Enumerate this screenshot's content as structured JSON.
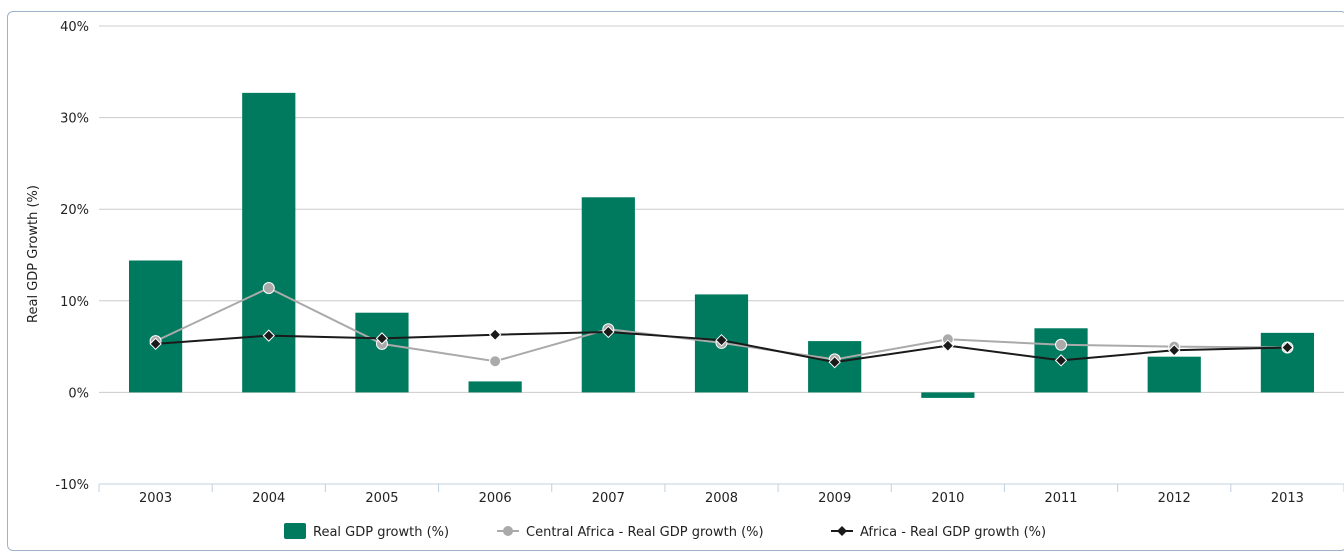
{
  "chart_data": {
    "type": "bar",
    "title": "",
    "xlabel": "",
    "ylabel": "Real GDP Growth (%)",
    "ylim": [
      -10,
      40
    ],
    "yticks": [
      -10,
      0,
      10,
      20,
      30,
      40
    ],
    "ytick_labels": [
      "-10%",
      "0%",
      "10%",
      "20%",
      "30%",
      "40%"
    ],
    "grid": true,
    "legend_position": "bottom-center",
    "categories": [
      "2003",
      "2004",
      "2005",
      "2006",
      "2007",
      "2008",
      "2009",
      "2010",
      "2011",
      "2012",
      "2013"
    ],
    "series": [
      {
        "name": "Real GDP growth (%)",
        "kind": "bar",
        "color": "#007a5e",
        "values": [
          14.4,
          32.7,
          8.7,
          1.2,
          21.3,
          10.7,
          5.6,
          -0.6,
          7.0,
          3.9,
          6.5
        ]
      },
      {
        "name": "Central Africa - Real GDP growth (%)",
        "kind": "line",
        "marker": "circle",
        "color": "#aaaaaa",
        "values": [
          5.6,
          11.4,
          5.3,
          3.4,
          6.9,
          5.4,
          3.6,
          5.8,
          5.2,
          5.0,
          4.9
        ]
      },
      {
        "name": "Africa - Real GDP growth (%)",
        "kind": "line",
        "marker": "diamond",
        "color": "#1a1a1a",
        "values": [
          5.3,
          6.2,
          5.9,
          6.3,
          6.6,
          5.7,
          3.3,
          5.1,
          3.5,
          4.6,
          4.9
        ]
      }
    ]
  }
}
